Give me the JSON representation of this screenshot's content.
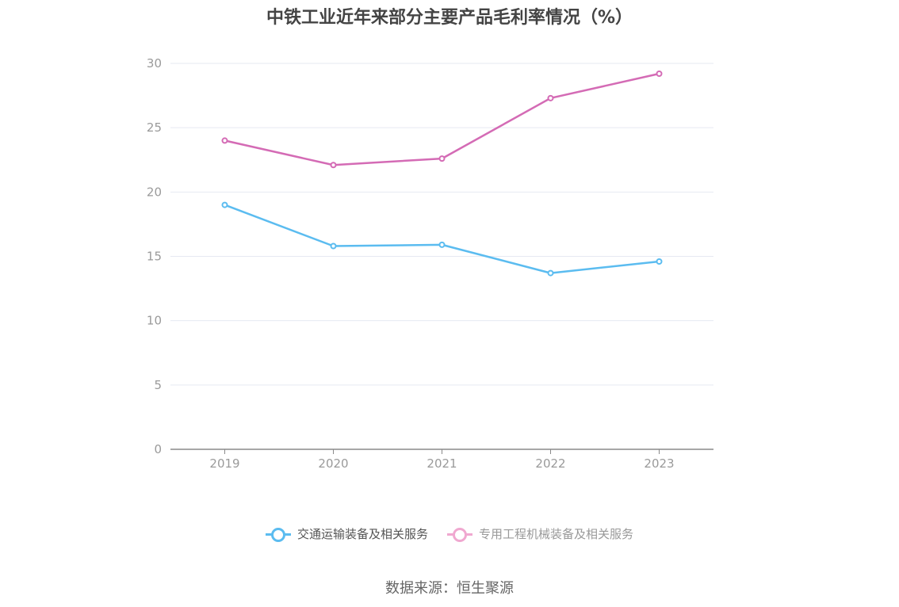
{
  "title": "中铁工业近年来部分主要产品毛利率情况（%）",
  "source": "数据来源：恒生聚源",
  "chart_data": {
    "type": "line",
    "title": "中铁工业近年来部分主要产品毛利率情况（%）",
    "x": [
      "2019",
      "2020",
      "2021",
      "2022",
      "2023"
    ],
    "yticks": [
      "0",
      "5",
      "10",
      "15",
      "20",
      "25",
      "30"
    ],
    "ylim": [
      0,
      30
    ],
    "grid": true,
    "legend_position": "bottom",
    "series": [
      {
        "name": "交通运输装备及相关服务",
        "color": "#5bbcf0",
        "values": [
          19.0,
          15.8,
          15.9,
          13.7,
          14.6
        ]
      },
      {
        "name": "专用工程机械装备及相关服务",
        "color": "#d46bb5",
        "values": [
          24.0,
          22.1,
          22.6,
          27.3,
          29.2
        ]
      }
    ]
  },
  "legend": {
    "items": [
      {
        "label": "交通运输装备及相关服务",
        "color": "#5bbcf0",
        "text_color": "#555555"
      },
      {
        "label": "专用工程机械装备及相关服务",
        "color": "#f0a8d0",
        "text_color": "#999999"
      }
    ]
  }
}
